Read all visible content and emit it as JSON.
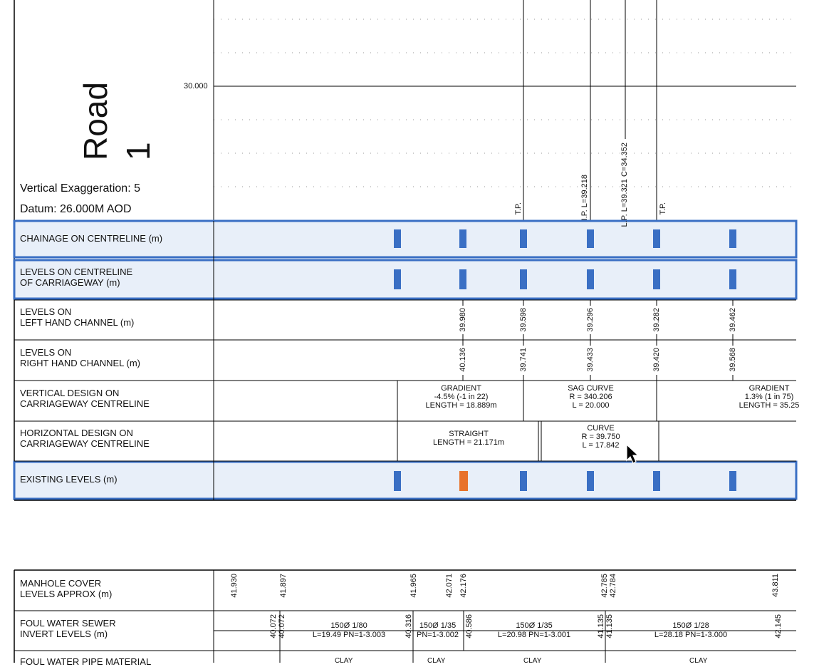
{
  "profile": {
    "title": "Road 1",
    "vertical_exaggeration": "Vertical Exaggeration: 5",
    "datum": "Datum: 26.000M AOD",
    "level_label": "30.000",
    "points": {
      "tp": "T.P.",
      "ip": "I.P. L=39.218",
      "lp": "L.P. L=39.321 C=34.352"
    }
  },
  "table": {
    "rows": [
      {
        "label": "CHAINAGE ON CENTRELINE (m)",
        "highlight": true
      },
      {
        "label": "LEVELS ON CENTRELINE\nOF CARRIAGEWAY (m)",
        "highlight": true
      },
      {
        "label": "LEVELS ON\nLEFT HAND CHANNEL (m)",
        "highlight": false
      },
      {
        "label": "LEVELS ON\nRIGHT HAND CHANNEL (m)",
        "highlight": false
      },
      {
        "label": "VERTICAL DESIGN ON\nCARRIAGEWAY CENTRELINE",
        "highlight": false
      },
      {
        "label": "HORIZONTAL DESIGN ON\nCARRIAGEWAY CENTRELINE",
        "highlight": false
      },
      {
        "label": "EXISTING LEVELS (m)",
        "highlight": true
      }
    ],
    "left_channel": [
      "39.980",
      "39.598",
      "39.296",
      "39.282",
      "39.462"
    ],
    "right_channel": [
      "40.136",
      "39.741",
      "39.433",
      "39.420",
      "39.568"
    ],
    "vertical_design": [
      {
        "lines": [
          "GRADIENT",
          "-4.5% (-1 in 22)",
          "LENGTH = 18.889m"
        ]
      },
      {
        "lines": [
          "SAG CURVE",
          "R = 340.206",
          "L = 20.000"
        ]
      },
      {
        "lines": [
          "GRADIENT",
          "1.3% (1 in 75)",
          "LENGTH = 35.25"
        ]
      }
    ],
    "horizontal_design": [
      {
        "lines": [
          "STRAIGHT",
          "LENGTH = 21.171m"
        ]
      },
      {
        "lines": [
          "CURVE",
          "R = 39.750",
          "L = 17.842"
        ]
      }
    ]
  },
  "drainage": {
    "rows": [
      {
        "label": "MANHOLE COVER\nLEVELS APPROX (m)"
      },
      {
        "label": "FOUL WATER SEWER\nINVERT LEVELS (m)"
      },
      {
        "label": "FOUL WATER PIPE MATERIAL"
      }
    ],
    "cover_levels": [
      "41.930",
      "41.897",
      "41.965",
      "42.071",
      "42.176",
      "42.785",
      "42.784",
      "43.811"
    ],
    "invert_levels": [
      "40.072",
      "40.072",
      "40.316",
      "40.586",
      "41.135",
      "41.135",
      "42.145"
    ],
    "pipes": [
      {
        "top": "150Ø  1/80",
        "bottom": "L=19.49  PN=1-3.003"
      },
      {
        "top": "150Ø  1/35",
        "bottom": "PN=1-3.002"
      },
      {
        "top": "150Ø  1/35",
        "bottom": "L=20.98  PN=1-3.001"
      },
      {
        "top": "150Ø  1/28",
        "bottom": "L=28.18  PN=1-3.000"
      }
    ],
    "material": [
      "CLAY",
      "CLAY",
      "CLAY",
      "CLAY"
    ]
  },
  "colors": {
    "highlight_border": "#3a6fc4",
    "highlight_fill": "#e8eff9",
    "tag_fill": "#3a6fc4",
    "tag_selected": "#e8732a",
    "grid_dot": "#999999"
  }
}
